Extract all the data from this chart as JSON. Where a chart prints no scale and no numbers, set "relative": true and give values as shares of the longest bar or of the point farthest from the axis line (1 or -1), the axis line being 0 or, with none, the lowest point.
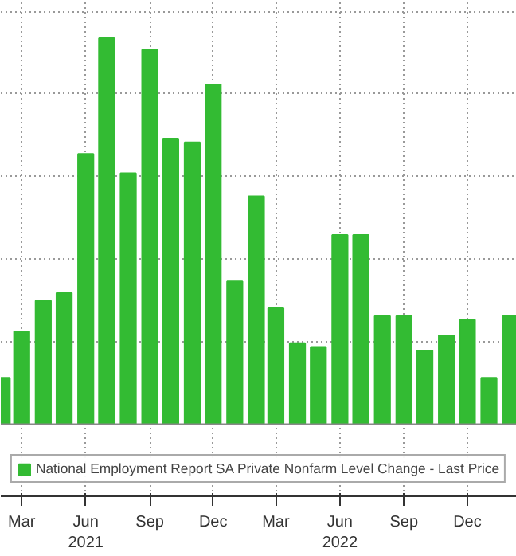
{
  "chart_data": {
    "type": "bar",
    "relative": true,
    "x": [
      "2021-02",
      "2021-03",
      "2021-04",
      "2021-05",
      "2021-06",
      "2021-07",
      "2021-08",
      "2021-09",
      "2021-10",
      "2021-11",
      "2021-12",
      "2022-01",
      "2022-02",
      "2022-03",
      "2022-04",
      "2022-05",
      "2022-06",
      "2022-07",
      "2022-08",
      "2022-09",
      "2022-10",
      "2022-11",
      "2022-12",
      "2023-01",
      "2023-02"
    ],
    "series": [
      {
        "name": "National Employment Report SA Private Nonfarm Level Change - Last Price",
        "color": "#33bb33",
        "values": [
          0.12,
          0.24,
          0.32,
          0.34,
          0.7,
          1,
          0.65,
          0.97,
          0.74,
          0.73,
          0.88,
          0.37,
          0.59,
          0.3,
          0.21,
          0.2,
          0.49,
          0.49,
          0.28,
          0.28,
          0.19,
          0.23,
          0.27,
          0.12,
          0.28
        ]
      }
    ],
    "xlim": [
      "2021-01-30",
      "2023-02-10"
    ],
    "xticks": [
      {
        "value": "2021-03",
        "label": "Mar"
      },
      {
        "value": "2021-06",
        "label": "Jun\n2021"
      },
      {
        "value": "2021-09",
        "label": "Sep"
      },
      {
        "value": "2021-12",
        "label": "Dec"
      },
      {
        "value": "2022-03",
        "label": "Mar"
      },
      {
        "value": "2022-06",
        "label": "Jun\n2022"
      },
      {
        "value": "2022-09",
        "label": "Sep"
      },
      {
        "value": "2022-12",
        "label": "Dec"
      }
    ],
    "grid": true,
    "legend": "bottom"
  }
}
